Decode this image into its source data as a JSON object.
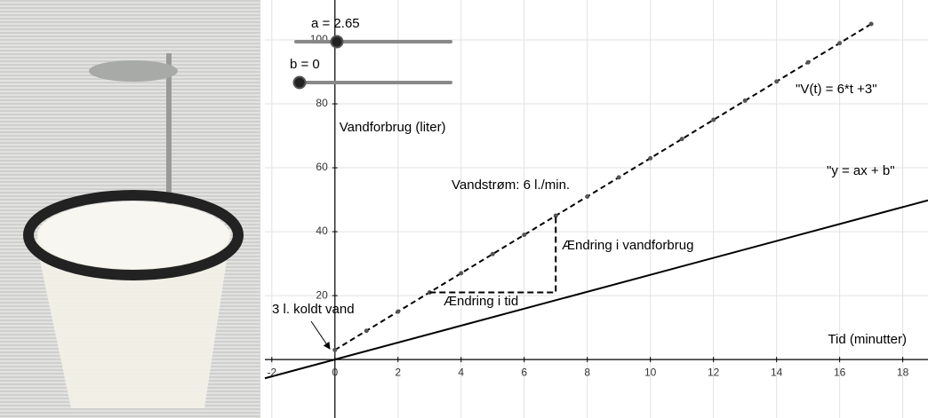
{
  "chart_data": {
    "type": "line",
    "xlabel": "Tid (minutter)",
    "ylabel": "Vandforbrug (liter)",
    "xlim": [
      -2.22,
      18.8
    ],
    "ylim": [
      -18.3,
      112.5
    ],
    "xticks": [
      -2,
      0,
      2,
      4,
      6,
      8,
      10,
      12,
      14,
      16,
      18
    ],
    "yticks": [
      20,
      40,
      60,
      80,
      100
    ],
    "grid": true,
    "series": [
      {
        "name": "\"V(t) = 6*t +3\"",
        "color": "#000000",
        "dashed": true,
        "markers": true,
        "x": [
          0,
          1,
          2,
          3,
          4,
          5,
          6,
          7,
          8,
          9,
          10,
          11,
          12,
          13,
          14,
          15,
          16,
          17
        ],
        "values": [
          3,
          9,
          15,
          21,
          27,
          33,
          39,
          45,
          51,
          57,
          63,
          69,
          75,
          81,
          87,
          93,
          99,
          105
        ]
      },
      {
        "name": "\"y = ax + b\"",
        "color": "#000000",
        "dashed": false,
        "markers": false,
        "x": [
          -2.22,
          18.8
        ],
        "values": [
          -5.88,
          49.82
        ]
      }
    ],
    "slope_triangle": {
      "x": [
        3,
        7,
        7
      ],
      "values": [
        21,
        21,
        45
      ]
    },
    "annotations": [
      "Vandstrøm: 6 l./min.",
      "Ændring i vandforbrug",
      "Ændring i tid",
      "3 l. koldt vand"
    ],
    "sliders": [
      {
        "label": "a = 2.65"
      },
      {
        "label": "b = 0"
      }
    ]
  }
}
